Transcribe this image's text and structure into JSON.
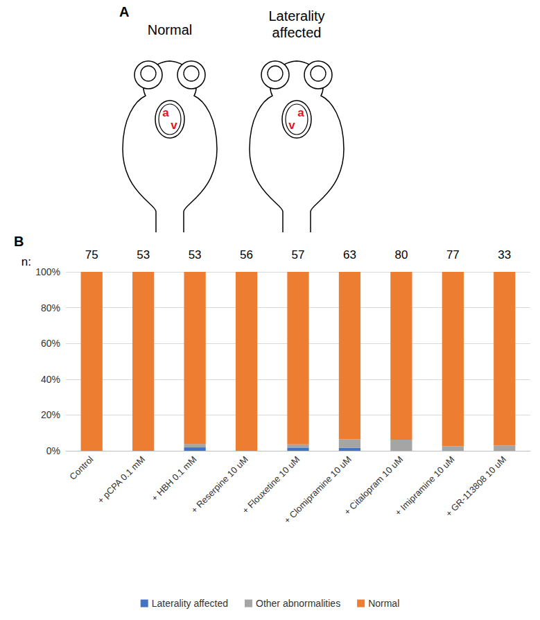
{
  "panel_a": {
    "letter": "A",
    "fish": [
      {
        "label": "Normal",
        "atrium": "a",
        "ventricle": "v",
        "reversed": false
      },
      {
        "label": "Laterality affected",
        "atrium": "a",
        "ventricle": "v",
        "reversed": true
      }
    ]
  },
  "chart_data": {
    "type": "bar",
    "panel_letter": "B",
    "stacked": true,
    "grid": true,
    "legend": "bottom",
    "n_label": "n:",
    "n": [
      75,
      53,
      53,
      56,
      57,
      63,
      80,
      77,
      33
    ],
    "categories": [
      "Control",
      "+ pCPA 0.1 mM",
      "+ HBH 0.1 mM",
      "+ Reserpine 10 uM",
      "+ Flouxetine 10 uM",
      "+ Clomipramine 10 uM",
      "+ Citalopram 10 uM",
      "+ Imipramine 10 uM",
      "+ GR-113808 10 uM"
    ],
    "series": [
      {
        "name": "Laterality affected",
        "color": "#4472c4",
        "values": [
          0,
          0,
          1.9,
          0,
          1.8,
          1.6,
          0,
          0,
          0
        ]
      },
      {
        "name": "Other abnormalities",
        "color": "#a5a5a5",
        "values": [
          0,
          0,
          1.9,
          0,
          1.8,
          4.8,
          6.2,
          2.6,
          3.0
        ]
      },
      {
        "name": "Normal",
        "color": "#ed7d31",
        "values": [
          100,
          100,
          96.2,
          100,
          96.4,
          93.6,
          93.8,
          97.4,
          97.0
        ]
      }
    ],
    "ylim": [
      0,
      100
    ],
    "yticks": [
      {
        "value": 0,
        "label": "0%"
      },
      {
        "value": 20,
        "label": "20%"
      },
      {
        "value": 40,
        "label": "40%"
      },
      {
        "value": 60,
        "label": "60%"
      },
      {
        "value": 80,
        "label": "80%"
      },
      {
        "value": 100,
        "label": "100%"
      }
    ]
  }
}
